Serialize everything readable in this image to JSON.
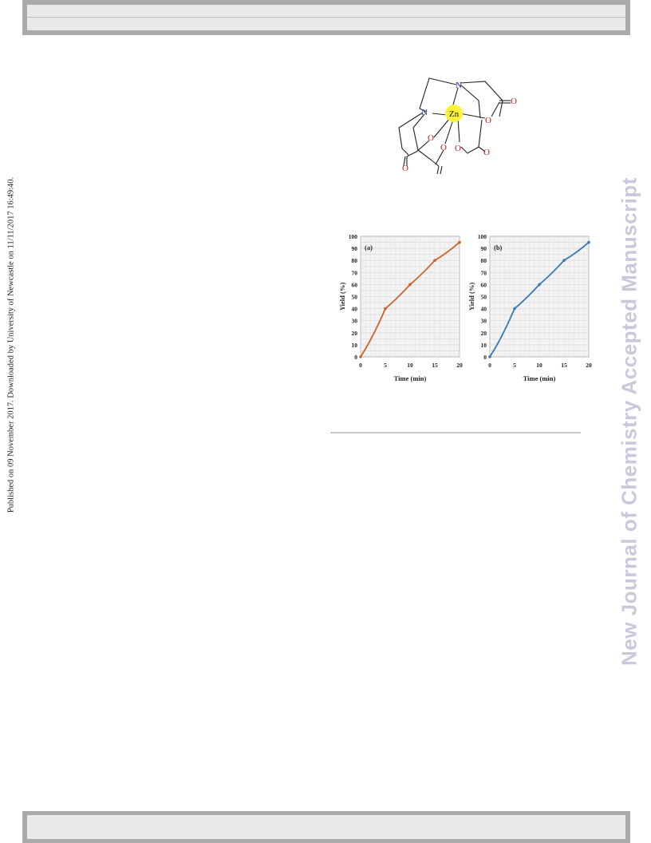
{
  "side_note": "Published on 09 November 2017. Downloaded by University of Newcastle on 11/11/2017 16:49:40.",
  "watermark": "New Journal of Chemistry Accepted Manuscript",
  "molecule": {
    "metal": "Zn",
    "atoms": [
      "N",
      "N",
      "O",
      "O",
      "O",
      "O",
      "O",
      "O",
      "O"
    ],
    "highlight_color": "#fff23a"
  },
  "chart_data": [
    {
      "type": "line",
      "panel_label": "(a)",
      "xlabel": "Time (min)",
      "ylabel": "Yield (%)",
      "x": [
        0,
        5,
        10,
        15,
        20
      ],
      "series": [
        {
          "values": [
            0,
            40,
            60,
            80,
            95
          ],
          "color": "#c8642a"
        }
      ],
      "xlim": [
        0,
        20
      ],
      "ylim": [
        0,
        100
      ],
      "xticks": [
        "0",
        "5",
        "10",
        "15",
        "20"
      ],
      "yticks": [
        "0",
        "10",
        "20",
        "30",
        "40",
        "50",
        "60",
        "70",
        "80",
        "90",
        "100"
      ],
      "grid": true
    },
    {
      "type": "line",
      "panel_label": "(b)",
      "xlabel": "Time (min)",
      "ylabel": "Yield (%)",
      "x": [
        0,
        5,
        10,
        15,
        20
      ],
      "series": [
        {
          "values": [
            0,
            40,
            60,
            80,
            95
          ],
          "color": "#3a78b4"
        }
      ],
      "xlim": [
        0,
        20
      ],
      "ylim": [
        0,
        100
      ],
      "xticks": [
        "0",
        "5",
        "10",
        "15",
        "20"
      ],
      "yticks": [
        "0",
        "10",
        "20",
        "30",
        "40",
        "50",
        "60",
        "70",
        "80",
        "90",
        "100"
      ],
      "grid": true
    }
  ]
}
